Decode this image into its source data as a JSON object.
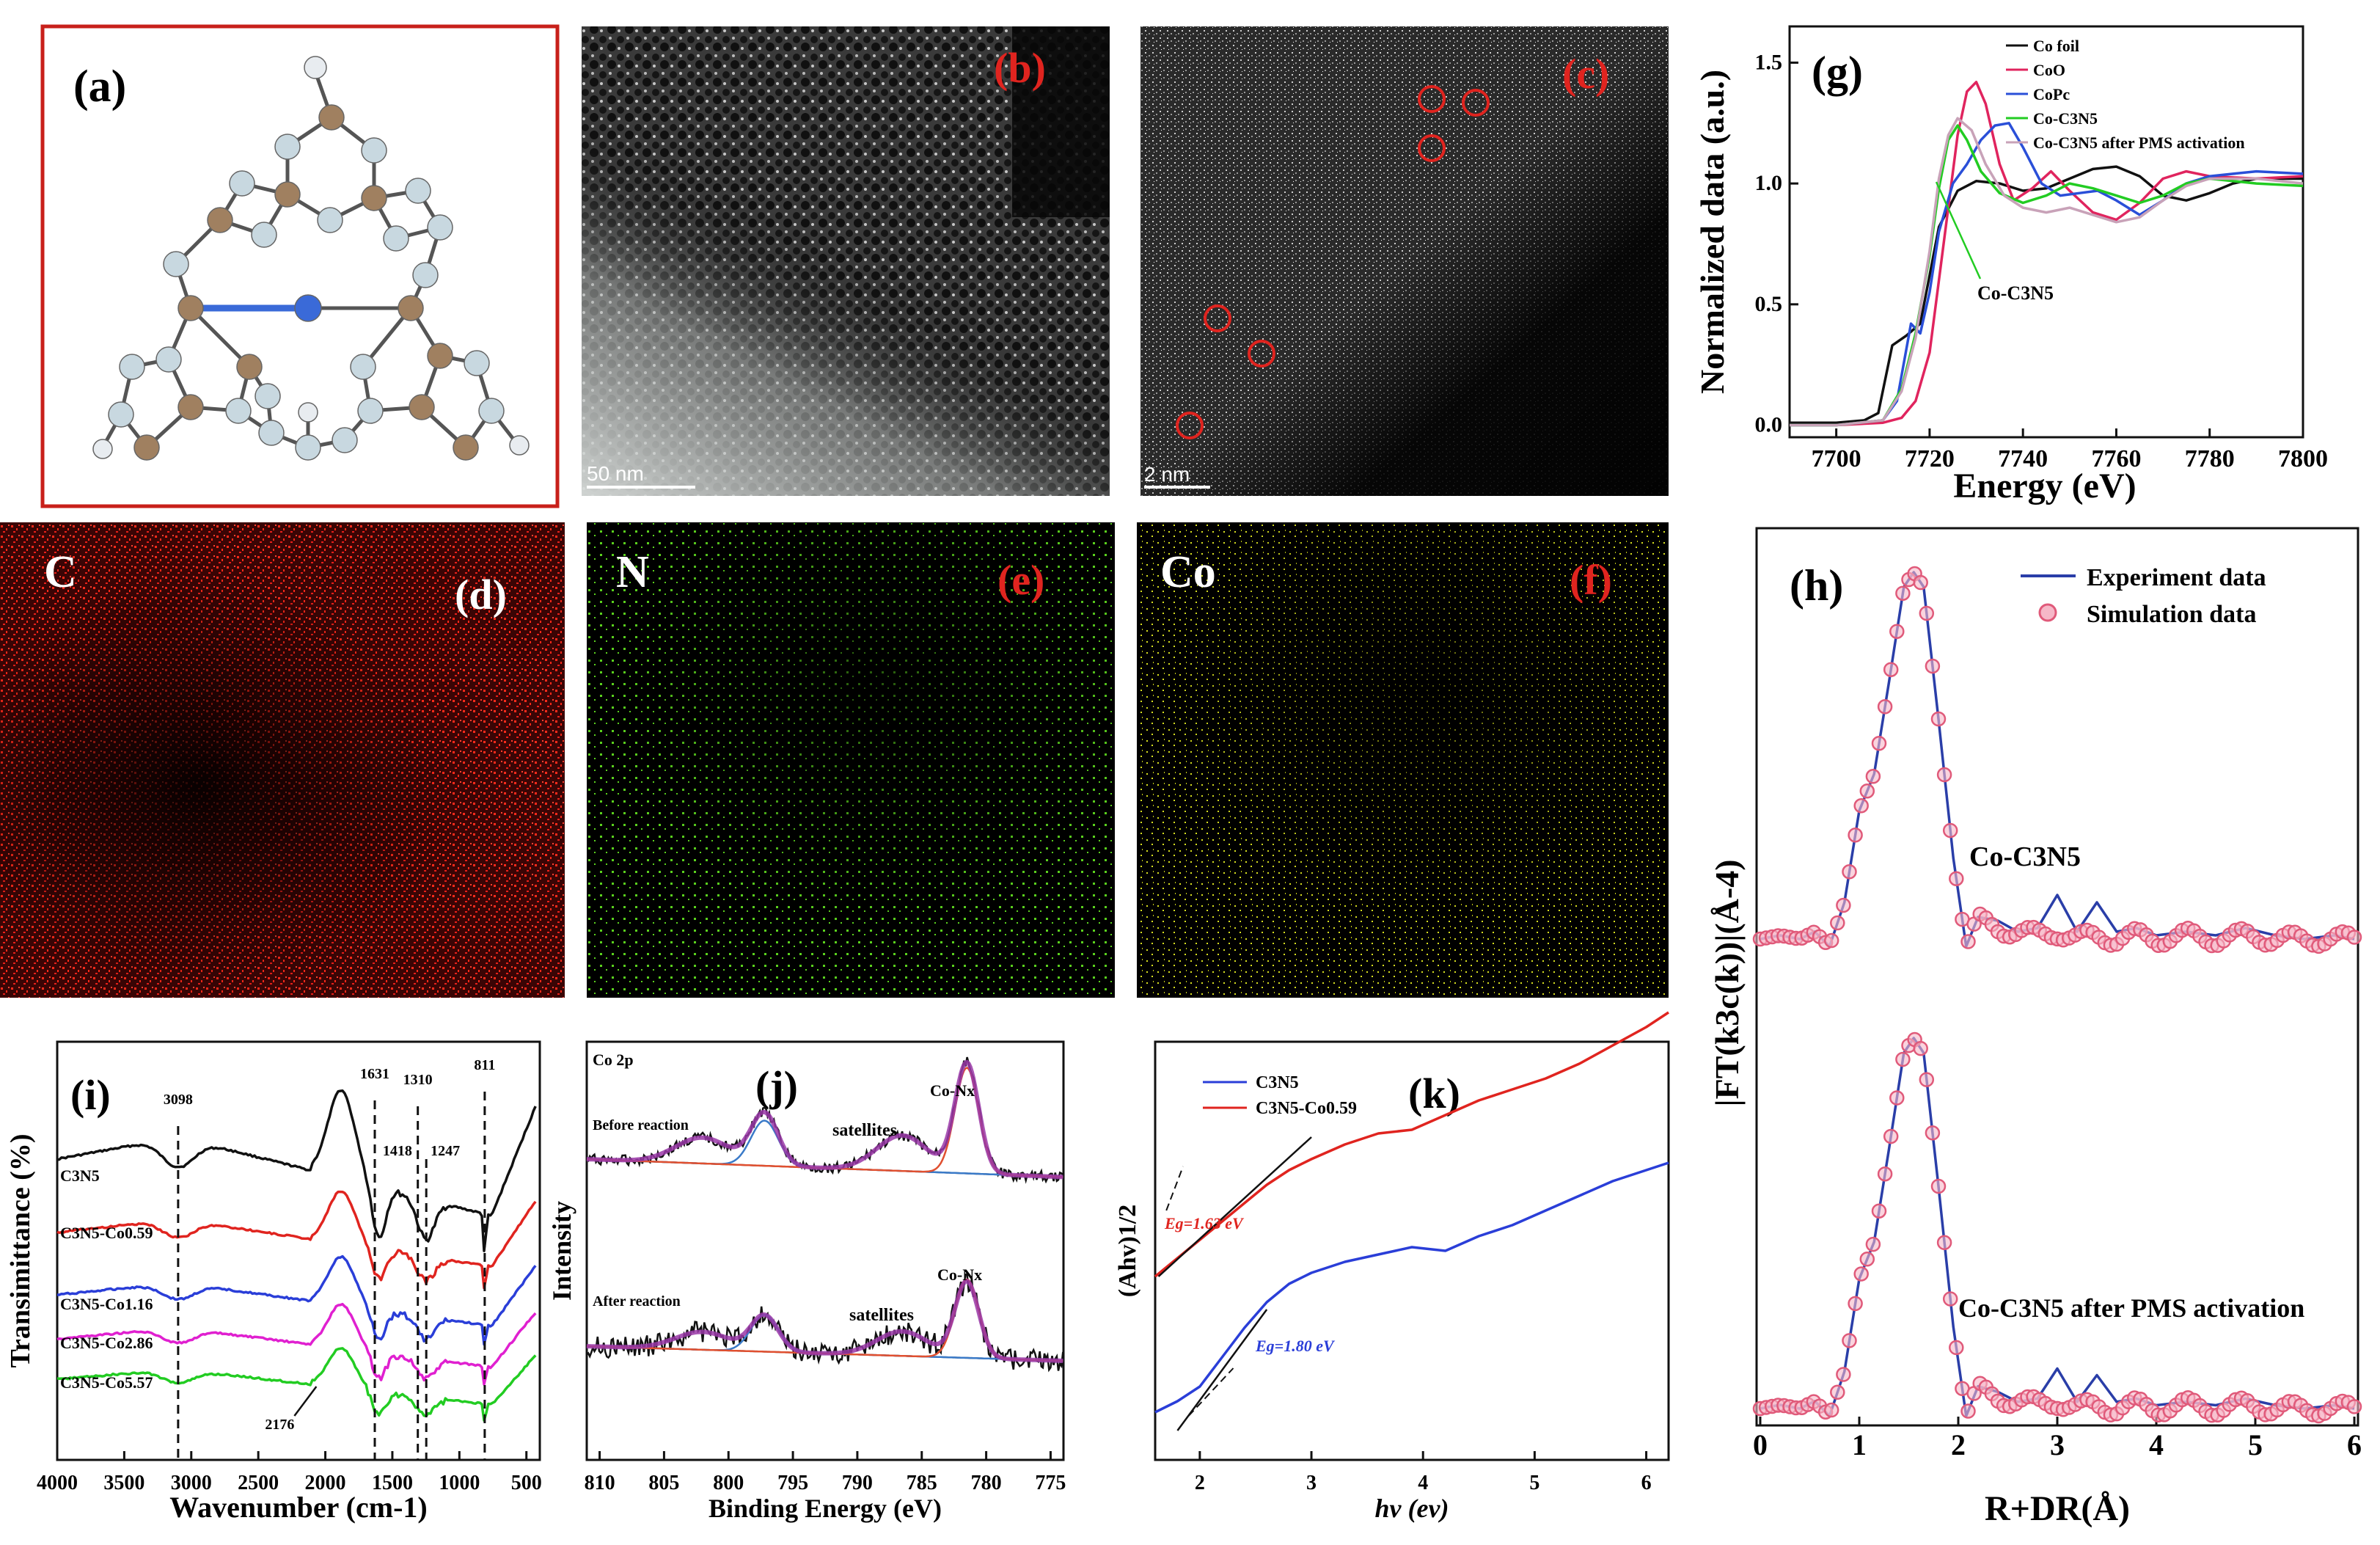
{
  "figure": {
    "panel_labels": {
      "a": "(a)",
      "b": "(b)",
      "c": "(c)",
      "d": "(d)",
      "e": "(e)",
      "f": "(f)",
      "g": "(g)",
      "h": "(h)",
      "i": "(i)",
      "j": "(j)",
      "k": "(k)"
    },
    "scale_bars": {
      "b": "50 nm",
      "c": "2 nm"
    },
    "eds_elements": {
      "d": "C",
      "e": "N",
      "f": "Co"
    },
    "colors": {
      "red_label": "#e0241f",
      "eds_c": "#ff2a1a",
      "eds_n": "#5bd21e",
      "eds_co": "#d8e020",
      "frame": "#c8201a"
    }
  },
  "chart_data": [
    {
      "id": "g",
      "type": "line",
      "xlabel": "Energy (eV)",
      "ylabel": "Normalized data (a.u.)",
      "xlim": [
        7690,
        7800
      ],
      "ylim": [
        -0.05,
        1.65
      ],
      "xticks": [
        "7700",
        "7720",
        "7740",
        "7760",
        "7780",
        "7800"
      ],
      "yticks": [
        "0.0",
        "0.5",
        "1.0",
        "1.5"
      ],
      "annotation": "Co-C3N5",
      "series": [
        {
          "name": "Co foil",
          "color": "#111111",
          "x": [
            7690,
            7700,
            7706,
            7709,
            7712,
            7715,
            7718,
            7722,
            7726,
            7730,
            7735,
            7740,
            7745,
            7750,
            7755,
            7760,
            7765,
            7770,
            7775,
            7780,
            7785,
            7790,
            7795,
            7800
          ],
          "y": [
            0.01,
            0.01,
            0.02,
            0.05,
            0.33,
            0.37,
            0.42,
            0.82,
            0.97,
            1.01,
            1.0,
            0.97,
            0.98,
            1.02,
            1.06,
            1.07,
            1.03,
            0.95,
            0.93,
            0.96,
            1.0,
            1.02,
            1.02,
            1.02
          ]
        },
        {
          "name": "CoO",
          "color": "#e0245e",
          "x": [
            7690,
            7700,
            7710,
            7714,
            7717,
            7720,
            7723,
            7726,
            7728,
            7730,
            7732,
            7735,
            7738,
            7742,
            7746,
            7750,
            7755,
            7760,
            7765,
            7770,
            7775,
            7780,
            7790,
            7800
          ],
          "y": [
            0.0,
            0.0,
            0.01,
            0.03,
            0.1,
            0.3,
            0.75,
            1.2,
            1.38,
            1.42,
            1.33,
            1.08,
            0.93,
            0.98,
            1.05,
            0.97,
            0.88,
            0.85,
            0.92,
            1.02,
            1.05,
            1.03,
            1.02,
            1.03
          ]
        },
        {
          "name": "CoPc",
          "color": "#2a4fd8",
          "x": [
            7690,
            7700,
            7710,
            7713,
            7716,
            7718,
            7720,
            7722,
            7725,
            7728,
            7731,
            7734,
            7737,
            7740,
            7744,
            7748,
            7752,
            7756,
            7760,
            7765,
            7770,
            7775,
            7780,
            7790,
            7800
          ],
          "y": [
            0.0,
            0.0,
            0.02,
            0.1,
            0.42,
            0.38,
            0.55,
            0.8,
            1.0,
            1.08,
            1.18,
            1.24,
            1.25,
            1.15,
            1.0,
            0.95,
            0.96,
            0.97,
            0.93,
            0.87,
            0.93,
            1.0,
            1.03,
            1.05,
            1.04
          ]
        },
        {
          "name": "Co-C3N5",
          "color": "#22cc22",
          "x": [
            7690,
            7700,
            7710,
            7714,
            7717,
            7720,
            7722,
            7724,
            7726,
            7728,
            7731,
            7735,
            7740,
            7745,
            7750,
            7755,
            7760,
            7765,
            7770,
            7775,
            7780,
            7790,
            7800
          ],
          "y": [
            0.0,
            0.0,
            0.02,
            0.15,
            0.38,
            0.7,
            0.98,
            1.18,
            1.24,
            1.18,
            1.05,
            0.96,
            0.92,
            0.95,
            1.0,
            0.98,
            0.95,
            0.92,
            0.95,
            1.0,
            1.02,
            1.0,
            0.99
          ]
        },
        {
          "name": "Co-C3N5 after PMS activation",
          "color": "#c8a2b8",
          "x": [
            7690,
            7700,
            7710,
            7714,
            7717,
            7720,
            7722,
            7724,
            7726,
            7729,
            7732,
            7736,
            7740,
            7745,
            7750,
            7755,
            7760,
            7765,
            7770,
            7775,
            7780,
            7790,
            7800
          ],
          "y": [
            0.0,
            0.0,
            0.02,
            0.14,
            0.36,
            0.72,
            1.02,
            1.2,
            1.27,
            1.22,
            1.08,
            0.95,
            0.9,
            0.88,
            0.9,
            0.87,
            0.84,
            0.86,
            0.93,
            0.99,
            1.02,
            1.02,
            1.0
          ]
        }
      ],
      "legend": [
        "Co foil",
        "CoO",
        "CoPc",
        "Co-C3N5",
        "Co-C3N5 after PMS activation"
      ]
    },
    {
      "id": "h",
      "type": "line",
      "xlabel": "R+DR(Å)",
      "ylabel": "|FT(k3c(k))|(Å-4)",
      "xlim": [
        0,
        6
      ],
      "ylim": [
        0,
        1
      ],
      "xticks": [
        "0",
        "1",
        "2",
        "3",
        "4",
        "5",
        "6"
      ],
      "legend": [
        "Experiment data",
        "Simulation data"
      ],
      "annotations": [
        "Co-C3N5",
        "Co-C3N5 after PMS activation"
      ],
      "series": [
        {
          "name": "Experiment data",
          "color": "#2a3ea8",
          "x": [
            0,
            0.2,
            0.4,
            0.55,
            0.7,
            0.85,
            1.0,
            1.15,
            1.3,
            1.45,
            1.55,
            1.65,
            1.8,
            1.95,
            2.08,
            2.2,
            2.4,
            2.6,
            2.8,
            3.0,
            3.2,
            3.4,
            3.6,
            3.8,
            4.0,
            4.3,
            4.6,
            4.9,
            5.2,
            5.5,
            5.8,
            6.0
          ],
          "y": [
            0.0,
            0.01,
            0.0,
            0.02,
            -0.02,
            0.1,
            0.35,
            0.45,
            0.7,
            0.96,
            1.0,
            0.96,
            0.6,
            0.22,
            -0.02,
            0.06,
            0.05,
            0.02,
            0.03,
            0.12,
            0.02,
            0.1,
            0.02,
            0.03,
            0.01,
            0.02,
            0.01,
            0.03,
            0.01,
            0.0,
            0.01,
            0.0
          ]
        },
        {
          "name": "Simulation data",
          "color": "#e05a7a",
          "x": [
            0,
            0.2,
            0.4,
            0.55,
            0.7,
            0.85,
            1.0,
            1.15,
            1.3,
            1.45,
            1.55,
            1.65,
            1.8,
            1.95,
            2.08,
            2.2,
            2.4,
            2.6,
            2.8,
            3.0,
            3.2,
            3.4,
            3.6,
            3.8,
            4.0,
            4.3,
            4.6,
            4.9,
            5.2,
            5.5,
            5.8,
            6.0
          ],
          "y": [
            0.0,
            0.01,
            0.0,
            0.02,
            -0.02,
            0.1,
            0.35,
            0.45,
            0.7,
            0.96,
            1.0,
            0.96,
            0.6,
            0.22,
            -0.02,
            0.05,
            0.03,
            0.02,
            0.01,
            0.02,
            0.0,
            0.01,
            0.0,
            0.01,
            0.0,
            0.01,
            0.0,
            0.01,
            0.0,
            0.0,
            0.0,
            0.0
          ]
        }
      ]
    },
    {
      "id": "i",
      "type": "line",
      "xlabel": "Wavenumber (cm-1)",
      "ylabel": "Transimittance (%)",
      "xlim": [
        4000,
        400
      ],
      "xticks": [
        "4000",
        "3500",
        "3000",
        "2500",
        "2000",
        "1500",
        "1000",
        "500"
      ],
      "marked_peaks": [
        "3098",
        "1631",
        "1418",
        "1310",
        "1247",
        "811",
        "2176"
      ],
      "series": [
        {
          "name": "C3N5",
          "color": "#111111"
        },
        {
          "name": "C3N5-Co0.59",
          "color": "#e0241f"
        },
        {
          "name": "C3N5-Co1.16",
          "color": "#2a3ed8"
        },
        {
          "name": "C3N5-Co2.86",
          "color": "#e020d0"
        },
        {
          "name": "C3N5-Co5.57",
          "color": "#22cc22"
        }
      ],
      "series_labels": [
        "C3N5",
        "C3N5-Co0.59",
        "C3N5-Co1.16",
        "C3N5-Co2.86",
        "C3N5-Co5.57"
      ]
    },
    {
      "id": "j",
      "type": "line",
      "xlabel": "Binding Energy (eV)",
      "ylabel": "Intensity",
      "xlim": [
        810,
        775
      ],
      "xticks": [
        "810",
        "805",
        "800",
        "795",
        "790",
        "785",
        "780",
        "775"
      ],
      "title": "Co 2p",
      "texts": [
        "Before reaction",
        "satellites",
        "Co-Nx",
        "After reaction",
        "satellites",
        "Co-Nx"
      ]
    },
    {
      "id": "k",
      "type": "line",
      "xlabel": "hv (ev)",
      "ylabel": "(Ahv)1/2",
      "xlim": [
        1.6,
        6.2
      ],
      "xticks": [
        "2",
        "3",
        "4",
        "5",
        "6"
      ],
      "legend": [
        "C3N5",
        "C3N5-Co0.59"
      ],
      "annotations": [
        "Eg=1.63 eV",
        "Eg=1.80 eV"
      ],
      "series": [
        {
          "name": "C3N5",
          "color": "#2a3ed8",
          "x": [
            1.6,
            1.8,
            2.0,
            2.2,
            2.4,
            2.6,
            2.8,
            3.0,
            3.3,
            3.6,
            3.9,
            4.2,
            4.5,
            4.8,
            5.1,
            5.4,
            5.7,
            6.0,
            6.2
          ],
          "y": [
            0.05,
            0.08,
            0.12,
            0.2,
            0.28,
            0.35,
            0.4,
            0.43,
            0.46,
            0.48,
            0.5,
            0.49,
            0.53,
            0.56,
            0.6,
            0.64,
            0.68,
            0.71,
            0.73
          ]
        },
        {
          "name": "C3N5-Co0.59",
          "color": "#e0241f",
          "x": [
            1.6,
            1.8,
            2.0,
            2.2,
            2.4,
            2.6,
            2.8,
            3.0,
            3.3,
            3.6,
            3.9,
            4.2,
            4.5,
            4.8,
            5.1,
            5.4,
            5.7,
            6.0,
            6.2
          ],
          "y": [
            0.42,
            0.47,
            0.52,
            0.57,
            0.62,
            0.67,
            0.71,
            0.74,
            0.78,
            0.81,
            0.82,
            0.86,
            0.9,
            0.93,
            0.96,
            1.0,
            1.05,
            1.1,
            1.14
          ]
        }
      ]
    }
  ]
}
